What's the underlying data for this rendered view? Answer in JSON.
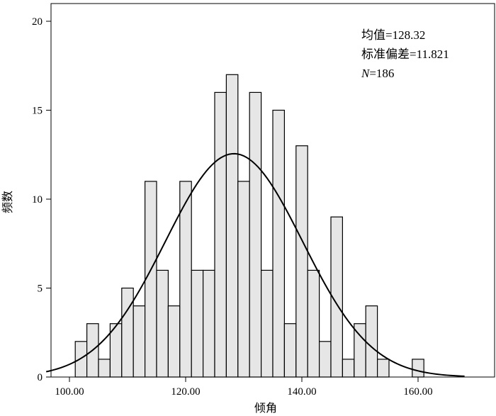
{
  "chart_data": {
    "type": "bar",
    "xlabel": "倾角",
    "ylabel": "频数",
    "xlim": [
      94,
      172
    ],
    "ylim": [
      0,
      20
    ],
    "x_ticks": [
      100,
      120,
      140,
      160
    ],
    "x_tick_labels": [
      "100.00",
      "120.00",
      "140.00",
      "160.00"
    ],
    "y_ticks": [
      0,
      5,
      10,
      15,
      20
    ],
    "y_tick_labels": [
      "0",
      "5",
      "10",
      "15",
      "20"
    ],
    "bin_width": 2,
    "bins": [
      {
        "start": 101,
        "end": 103,
        "count": 2
      },
      {
        "start": 103,
        "end": 105,
        "count": 3
      },
      {
        "start": 105,
        "end": 107,
        "count": 1
      },
      {
        "start": 107,
        "end": 109,
        "count": 3
      },
      {
        "start": 109,
        "end": 111,
        "count": 5
      },
      {
        "start": 111,
        "end": 113,
        "count": 4
      },
      {
        "start": 113,
        "end": 115,
        "count": 11
      },
      {
        "start": 115,
        "end": 117,
        "count": 6
      },
      {
        "start": 117,
        "end": 119,
        "count": 4
      },
      {
        "start": 119,
        "end": 121,
        "count": 11
      },
      {
        "start": 121,
        "end": 123,
        "count": 6
      },
      {
        "start": 123,
        "end": 125,
        "count": 6
      },
      {
        "start": 125,
        "end": 127,
        "count": 16
      },
      {
        "start": 127,
        "end": 129,
        "count": 17
      },
      {
        "start": 129,
        "end": 131,
        "count": 11
      },
      {
        "start": 131,
        "end": 133,
        "count": 16
      },
      {
        "start": 133,
        "end": 135,
        "count": 6
      },
      {
        "start": 135,
        "end": 137,
        "count": 15
      },
      {
        "start": 137,
        "end": 139,
        "count": 3
      },
      {
        "start": 139,
        "end": 141,
        "count": 13
      },
      {
        "start": 141,
        "end": 143,
        "count": 6
      },
      {
        "start": 143,
        "end": 145,
        "count": 2
      },
      {
        "start": 145,
        "end": 147,
        "count": 9
      },
      {
        "start": 147,
        "end": 149,
        "count": 1
      },
      {
        "start": 149,
        "end": 151,
        "count": 3
      },
      {
        "start": 151,
        "end": 153,
        "count": 4
      },
      {
        "start": 153,
        "end": 155,
        "count": 1
      },
      {
        "start": 159,
        "end": 161,
        "count": 1
      }
    ],
    "normal_curve": {
      "mean": 128.32,
      "sd": 11.821,
      "n": 186
    },
    "stats_text": {
      "mean": "均值=128.32",
      "sd": "标准偏差=11.821",
      "n_symbol": "N",
      "n_value": "=186"
    },
    "colors": {
      "bar_fill": "#e6e6e6",
      "bar_stroke": "#000000",
      "curve": "#000000",
      "axis": "#000000"
    },
    "grid": false
  }
}
